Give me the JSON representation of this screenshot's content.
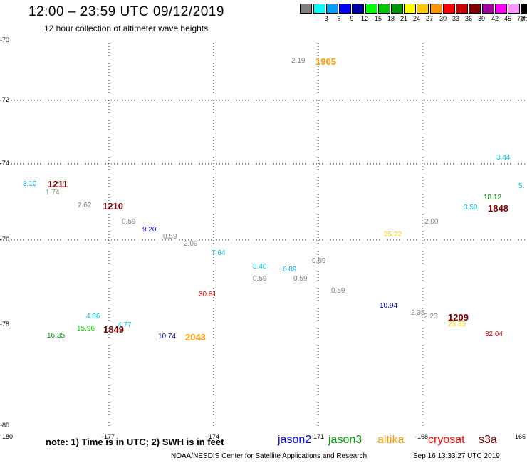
{
  "header": {
    "title": "12:00 – 23:59 UTC 09/12/2019",
    "subtitle": "12 hour collection of altimeter wave heights"
  },
  "legend": {
    "unit": "(ft)",
    "swatches": [
      {
        "color": "#808080",
        "label": ""
      },
      {
        "color": "#00ffff",
        "label": "3"
      },
      {
        "color": "#00a0ff",
        "label": "6"
      },
      {
        "color": "#0000ff",
        "label": "9"
      },
      {
        "color": "#0000a0",
        "label": "12"
      },
      {
        "color": "#00ff00",
        "label": "15"
      },
      {
        "color": "#00c800",
        "label": "18"
      },
      {
        "color": "#009600",
        "label": "21"
      },
      {
        "color": "#ffff00",
        "label": "24"
      },
      {
        "color": "#ffc800",
        "label": "27"
      },
      {
        "color": "#ff9600",
        "label": "30"
      },
      {
        "color": "#ff0000",
        "label": "33"
      },
      {
        "color": "#c80000",
        "label": "36"
      },
      {
        "color": "#800000",
        "label": "39"
      },
      {
        "color": "#a000a0",
        "label": "42"
      },
      {
        "color": "#ff00ff",
        "label": "45"
      },
      {
        "color": "#ff96ff",
        "label": "70"
      },
      {
        "color": "#000000",
        "label": ""
      }
    ]
  },
  "map": {
    "lat_labels": [
      "-70",
      "-72",
      "-74",
      "-76",
      "-78",
      "-80"
    ],
    "lon_labels": [
      "-180",
      "-177",
      "-174",
      "-171",
      "-168",
      "-165"
    ],
    "grid": true
  },
  "observations": [
    {
      "v": "2.19",
      "c": "#808080"
    },
    {
      "v": "3.44",
      "c": "#00c8e6"
    },
    {
      "v": "8.10",
      "c": "#00a0e0"
    },
    {
      "v": "1.74",
      "c": "#808080"
    },
    {
      "v": "2.62",
      "c": "#808080"
    },
    {
      "v": "0.59",
      "c": "#808080"
    },
    {
      "v": "9.20",
      "c": "#0000ff"
    },
    {
      "v": "0.59",
      "c": "#808080"
    },
    {
      "v": "2.09",
      "c": "#808080"
    },
    {
      "v": "7.64",
      "c": "#00c8e6"
    },
    {
      "v": "3.40",
      "c": "#00c8e6"
    },
    {
      "v": "0.59",
      "c": "#808080"
    },
    {
      "v": "8.89",
      "c": "#00a0e0"
    },
    {
      "v": "0.59",
      "c": "#808080"
    },
    {
      "v": "0.59",
      "c": "#808080"
    },
    {
      "v": "0.59",
      "c": "#808080"
    },
    {
      "v": "30.81",
      "c": "#ff0000"
    },
    {
      "v": "25.22",
      "c": "#ffc800"
    },
    {
      "v": "2.00",
      "c": "#808080"
    },
    {
      "v": "18.12",
      "c": "#009600"
    },
    {
      "v": "3.59",
      "c": "#00c8e6"
    },
    {
      "v": "5.",
      "c": "#00c8e6"
    },
    {
      "v": "10.94",
      "c": "#0000c8"
    },
    {
      "v": "2.35",
      "c": "#808080"
    },
    {
      "v": "2.23",
      "c": "#808080"
    },
    {
      "v": "23.55",
      "c": "#ffc800"
    },
    {
      "v": "32.04",
      "c": "#ff0000"
    },
    {
      "v": "4.86",
      "c": "#00c8e6"
    },
    {
      "v": "15.96",
      "c": "#00c800"
    },
    {
      "v": "4.77",
      "c": "#00c8e6"
    },
    {
      "v": "16.35",
      "c": "#009600"
    },
    {
      "v": "10.74",
      "c": "#0000c8"
    }
  ],
  "times": [
    {
      "v": "1905",
      "c": "#ff9600"
    },
    {
      "v": "1211",
      "c": "#800000"
    },
    {
      "v": "1210",
      "c": "#800000"
    },
    {
      "v": "1848",
      "c": "#800000"
    },
    {
      "v": "1209",
      "c": "#800000"
    },
    {
      "v": "1849",
      "c": "#800000"
    },
    {
      "v": "2043",
      "c": "#ff9600"
    }
  ],
  "footer": {
    "note": "note: 1) Time is in UTC; 2) SWH is in feet",
    "satellites": [
      {
        "name": "jason2",
        "c": "#0000ff"
      },
      {
        "name": "jason3",
        "c": "#00a000"
      },
      {
        "name": "altika",
        "c": "#ff9600"
      },
      {
        "name": "cryosat",
        "c": "#ff0000"
      },
      {
        "name": "s3a",
        "c": "#800000"
      }
    ],
    "credit": "NOAA/NESDIS Center for Satellite Applications and Research",
    "timestamp": "Sep 16 13:33:27 UTC 2019"
  }
}
